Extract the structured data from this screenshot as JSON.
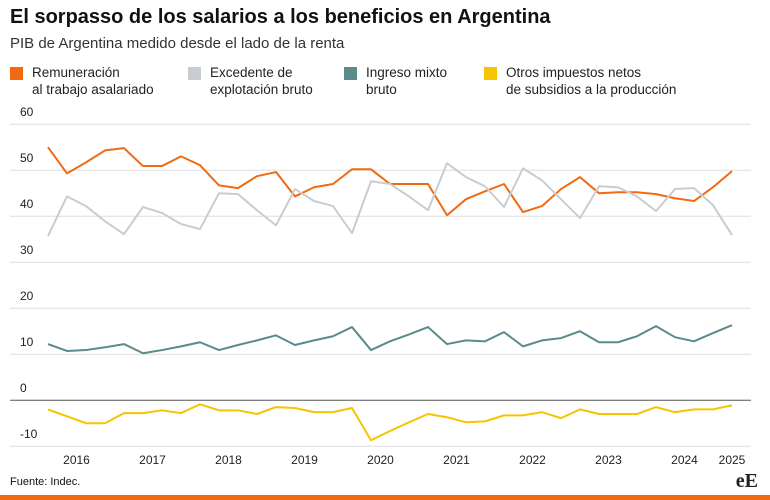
{
  "chart_data": {
    "type": "line",
    "title": "El sorpasso de los salarios a los beneficios en Argentina",
    "subtitle": "PIB de Argentina medido desde el lado de la renta",
    "source": "Fuente: Indec.",
    "logo": "eE",
    "x": [
      2016,
      2016.25,
      2016.5,
      2016.75,
      2017,
      2017.25,
      2017.5,
      2017.75,
      2018,
      2018.25,
      2018.5,
      2018.75,
      2019,
      2019.25,
      2019.5,
      2019.75,
      2020,
      2020.25,
      2020.5,
      2020.75,
      2021,
      2021.25,
      2021.5,
      2021.75,
      2022,
      2022.25,
      2022.5,
      2022.75,
      2023,
      2023.25,
      2023.5,
      2023.75,
      2024,
      2024.25,
      2024.5,
      2024.75,
      2025
    ],
    "xlim": [
      2015.5,
      2025.25
    ],
    "xticks": [
      {
        "value": 2016.375,
        "label": "2016"
      },
      {
        "value": 2017.375,
        "label": "2017"
      },
      {
        "value": 2018.375,
        "label": "2018"
      },
      {
        "value": 2019.375,
        "label": "2019"
      },
      {
        "value": 2020.375,
        "label": "2020"
      },
      {
        "value": 2021.375,
        "label": "2021"
      },
      {
        "value": 2022.375,
        "label": "2022"
      },
      {
        "value": 2023.375,
        "label": "2023"
      },
      {
        "value": 2024.375,
        "label": "2024"
      },
      {
        "value": 2025,
        "label": "2025"
      }
    ],
    "ylim": [
      -13,
      62
    ],
    "yticks": [
      -10,
      0,
      10,
      20,
      30,
      40,
      50,
      60
    ],
    "grid": true,
    "series": [
      {
        "name": "Remuneración\nal trabajo asalariado",
        "color": "#f26a10",
        "values": [
          55.0,
          49.3,
          51.7,
          54.3,
          54.8,
          50.9,
          50.9,
          53.0,
          51.1,
          46.7,
          46.1,
          48.7,
          49.6,
          44.3,
          46.3,
          47.0,
          50.2,
          50.2,
          47.0,
          47.0,
          47.0,
          40.2,
          43.7,
          45.4,
          47.0,
          40.9,
          42.2,
          45.9,
          48.5,
          45.0,
          45.2,
          45.2,
          44.8,
          43.9,
          43.3,
          46.3,
          49.8
        ]
      },
      {
        "name": "Excedente de\nexplotación bruto",
        "color": "#c9cdd1",
        "values": [
          35.7,
          44.3,
          42.2,
          38.9,
          36.1,
          42.0,
          40.7,
          38.3,
          37.2,
          45.0,
          44.8,
          41.3,
          38.0,
          45.9,
          43.3,
          42.2,
          36.3,
          47.6,
          47.0,
          44.3,
          41.3,
          51.5,
          48.5,
          46.5,
          42.0,
          50.4,
          47.8,
          43.7,
          39.6,
          46.5,
          46.3,
          44.3,
          41.1,
          45.9,
          46.1,
          42.4,
          35.9
        ]
      },
      {
        "name": "Ingreso mixto\nbruto",
        "color": "#5b8a8a",
        "values": [
          12.2,
          10.7,
          10.9,
          11.5,
          12.2,
          10.2,
          10.9,
          11.7,
          12.6,
          10.9,
          12.0,
          13.0,
          14.1,
          12.0,
          13.0,
          13.9,
          15.9,
          10.9,
          12.8,
          14.3,
          15.9,
          12.2,
          13.0,
          12.8,
          14.8,
          11.7,
          13.0,
          13.5,
          15.0,
          12.6,
          12.6,
          13.9,
          16.1,
          13.7,
          12.8,
          14.6,
          16.3
        ]
      },
      {
        "name": "Otros impuestos netos\nde subsidios a la producción",
        "color": "#f6c400",
        "values": [
          -2.0,
          -3.5,
          -5.0,
          -5.0,
          -2.8,
          -2.8,
          -2.2,
          -2.8,
          -0.9,
          -2.2,
          -2.2,
          -3.0,
          -1.5,
          -1.7,
          -2.6,
          -2.6,
          -1.7,
          -8.7,
          -6.7,
          -4.8,
          -3.0,
          -3.7,
          -4.8,
          -4.6,
          -3.3,
          -3.3,
          -2.6,
          -3.9,
          -2.0,
          -3.0,
          -3.0,
          -3.0,
          -1.5,
          -2.6,
          -2.0,
          -2.0,
          -1.1
        ]
      }
    ]
  }
}
